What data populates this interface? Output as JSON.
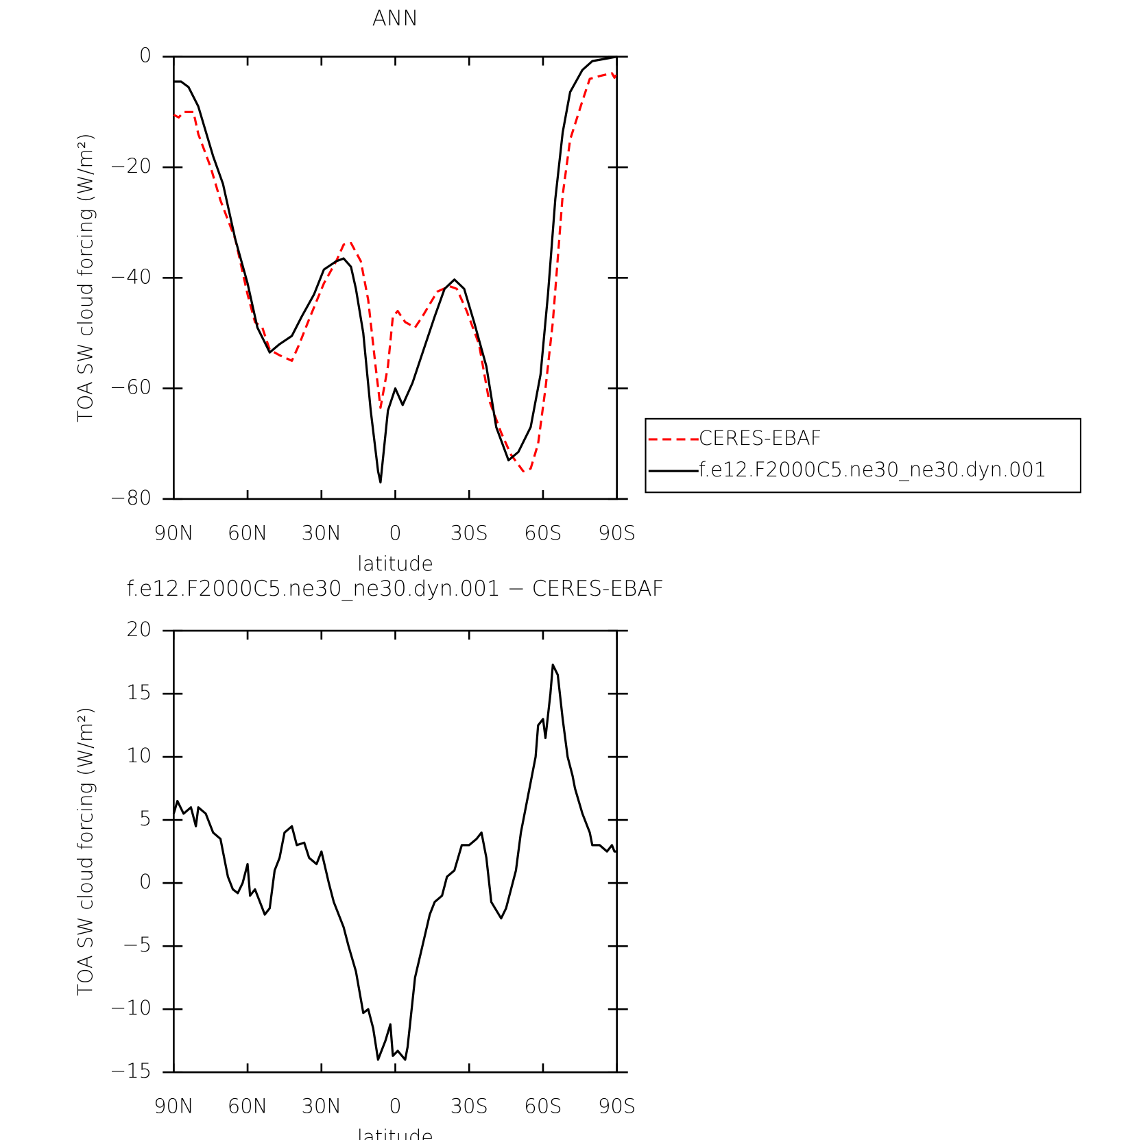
{
  "chart_data": [
    {
      "type": "line",
      "title": "ANN",
      "xlabel": "latitude",
      "ylabel": "TOA SW cloud forcing (W/m²)",
      "xlim": [
        90,
        -90
      ],
      "xticks": [
        {
          "value": 90,
          "label": "90N"
        },
        {
          "value": 60,
          "label": "60N"
        },
        {
          "value": 30,
          "label": "30N"
        },
        0,
        {
          "value": -30,
          "label": "30S"
        },
        {
          "value": -60,
          "label": "60S"
        },
        {
          "value": -90,
          "label": "90S"
        }
      ],
      "ylim": [
        -80,
        0
      ],
      "yticks": [
        {
          "value": -80,
          "label": "−80"
        },
        {
          "value": -60,
          "label": "−60"
        },
        {
          "value": -40,
          "label": "−40"
        },
        {
          "value": -20,
          "label": "−20"
        },
        0
      ],
      "legend": "right",
      "series": [
        {
          "name": "CERES-EBAF",
          "color": "#ff0000",
          "dash": true,
          "x": [
            90,
            88,
            86,
            82,
            80,
            75,
            71,
            65,
            60,
            57,
            54,
            51,
            47,
            42,
            39,
            35,
            29,
            24,
            21,
            18,
            14,
            11,
            8,
            6,
            3,
            1,
            -1,
            -4,
            -8,
            -11,
            -17,
            -22,
            -25,
            -29,
            -34,
            -38,
            -43,
            -47,
            -52,
            -55,
            -58,
            -61,
            -64,
            -68,
            -71,
            -76,
            -79,
            -83,
            -88,
            -89,
            -90
          ],
          "values": [
            -10.5,
            -11,
            -10,
            -10,
            -14,
            -20,
            -26,
            -33,
            -43,
            -48,
            -49,
            -53,
            -54,
            -55,
            -52,
            -47.5,
            -41,
            -37,
            -34,
            -33.7,
            -37,
            -44,
            -56,
            -63.5,
            -56,
            -47,
            -46,
            -48,
            -49,
            -47,
            -42.5,
            -41.5,
            -42,
            -46,
            -52,
            -62,
            -68,
            -72,
            -75,
            -74.5,
            -70,
            -60,
            -48,
            -25,
            -15,
            -8,
            -4,
            -3.5,
            -3,
            -3.8,
            -3
          ]
        },
        {
          "name": "f.e12.F2000C5.ne30_ne30.dyn.001",
          "color": "#000000",
          "dash": false,
          "x": [
            90,
            87,
            84,
            80,
            74,
            70,
            65,
            60,
            56,
            51,
            47,
            42,
            38,
            33,
            29,
            24,
            21,
            18,
            16,
            13,
            10,
            7,
            6,
            3,
            0,
            -3,
            -7,
            -10,
            -16,
            -20,
            -24,
            -28,
            -32,
            -37,
            -41,
            -46,
            -50,
            -55,
            -59,
            -62,
            -65,
            -68,
            -71,
            -76,
            -80,
            -90
          ],
          "values": [
            -4.5,
            -4.5,
            -5.5,
            -9,
            -18,
            -23,
            -33,
            -41,
            -49,
            -53.5,
            -52,
            -50.5,
            -47,
            -43,
            -38.5,
            -37,
            -36.5,
            -38,
            -42,
            -50,
            -64,
            -75,
            -77,
            -64,
            -60,
            -63,
            -59,
            -55,
            -47,
            -42,
            -40.3,
            -42,
            -48,
            -56,
            -67,
            -73,
            -71.5,
            -67,
            -57.5,
            -43,
            -25.7,
            -13.7,
            -6.4,
            -2.4,
            -0.8,
            0
          ]
        }
      ]
    },
    {
      "type": "line",
      "title": "f.e12.F2000C5.ne30_ne30.dyn.001 − CERES-EBAF",
      "xlabel": "latitude",
      "ylabel": "TOA SW cloud forcing (W/m²)",
      "xlim": [
        90,
        -90
      ],
      "xticks": [
        {
          "value": 90,
          "label": "90N"
        },
        {
          "value": 60,
          "label": "60N"
        },
        {
          "value": 30,
          "label": "30N"
        },
        0,
        {
          "value": -30,
          "label": "30S"
        },
        {
          "value": -60,
          "label": "60S"
        },
        {
          "value": -90,
          "label": "90S"
        }
      ],
      "ylim": [
        -15,
        20
      ],
      "yticks": [
        {
          "value": -15,
          "label": "−15"
        },
        {
          "value": -10,
          "label": "−10"
        },
        {
          "value": -5,
          "label": "−5"
        },
        0,
        5,
        10,
        15,
        20
      ],
      "series": [
        {
          "color": "#000000",
          "dash": false,
          "x": [
            90,
            88.5,
            86,
            83,
            81,
            80,
            77,
            74,
            71,
            69,
            68,
            66,
            64,
            62,
            60,
            59,
            57,
            55,
            53,
            51,
            49,
            47,
            45,
            42,
            40,
            37,
            35,
            32,
            30,
            27,
            25,
            21,
            19,
            16,
            13,
            11,
            9,
            7,
            4,
            2,
            1,
            -1,
            -4,
            -5,
            -8,
            -11,
            -14,
            -16,
            -19,
            -21,
            -24,
            -27,
            -30,
            -33,
            -35,
            -37,
            -39,
            -43,
            -45,
            -49,
            -51,
            -54,
            -57,
            -58,
            -60,
            -61,
            -63,
            -64,
            -66,
            -68,
            -70,
            -72,
            -73,
            -76,
            -79,
            -80,
            -83,
            -86,
            -88,
            -89,
            -90
          ],
          "values": [
            5.5,
            6.5,
            5.5,
            6,
            4.5,
            6,
            5.5,
            4,
            3.5,
            1.5,
            0.5,
            -0.5,
            -0.8,
            0,
            1.5,
            -1,
            -0.5,
            -1.5,
            -2.5,
            -2,
            1,
            2,
            4,
            4.5,
            3,
            3.2,
            2,
            1.5,
            2.5,
            0,
            -1.5,
            -3.5,
            -5,
            -7,
            -10.3,
            -10,
            -11.5,
            -14,
            -12.5,
            -11.2,
            -13.7,
            -13.3,
            -14,
            -13,
            -7.5,
            -5,
            -2.5,
            -1.5,
            -1,
            0.5,
            1,
            3,
            3,
            3.5,
            4,
            2,
            -1.5,
            -2.8,
            -2,
            1,
            4,
            7,
            10,
            12.5,
            13,
            11.5,
            15,
            17.3,
            16.5,
            13,
            10,
            8.5,
            7.5,
            5.5,
            4,
            3,
            3,
            2.5,
            3,
            2.5,
            2.5
          ]
        }
      ]
    }
  ]
}
